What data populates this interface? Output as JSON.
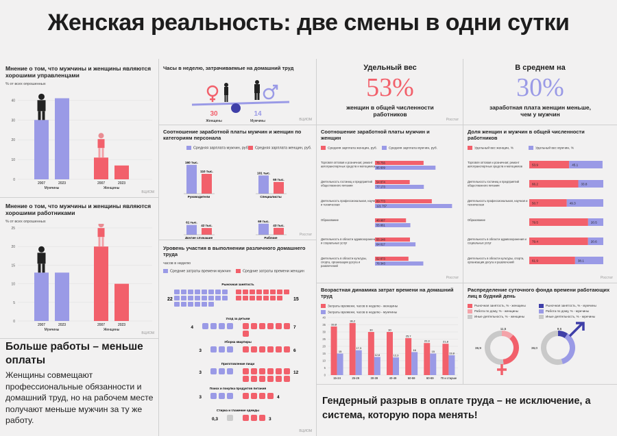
{
  "title": "Женская реальность: две смены в одни сутки",
  "colors": {
    "blue": "#9a9ae6",
    "red": "#f2606b",
    "pink": "#f4a3a9",
    "dark": "#1d1d1d",
    "navy": "#3f3fa8",
    "grey": "#c9c9c9"
  },
  "source_label": "ВЦИОМ",
  "source_label2": "Росстат",
  "panel_managers": {
    "title": "Мнение о том, что мужчины и женщины являются хорошими управленцами",
    "sub": "% от всех опрошенных",
    "men_label": "Мужчины",
    "women_label": "Женщины"
  },
  "panel_workers": {
    "title": "Мнение о том, что мужчины и женщины являются хорошими работниками",
    "sub": "% от всех опрошенных",
    "men_label": "Мужчины",
    "women_label": "Женщины"
  },
  "panel_hours": {
    "title": "Часы в неделю, затрачиваемые на домашний труд",
    "women_value": "30",
    "men_value": "14",
    "women_label": "Женщины",
    "men_label": "Мужчины"
  },
  "kpi_share": {
    "header": "Удельный вес",
    "value": "53%",
    "caption": "женщин в общей численности работников"
  },
  "kpi_avg": {
    "header": "В среднем на",
    "value": "30%",
    "caption": "заработная плата женщин меньше, чем у мужчин"
  },
  "panel_salary_cat": {
    "title": "Соотношение заработной платы мужчин и женщин по категориям персонала",
    "legend_men": "Средняя зарплата мужчин, руб.",
    "legend_women": "Средняя зарплата женщин, руб."
  },
  "panel_salary_ind": {
    "title": "Соотношение заработной платы мужчин и женщин",
    "legend_women": "Средняя зарплата женщин, руб.",
    "legend_men": "Средняя зарплата мужчин, руб."
  },
  "panel_share_ind": {
    "title": "Доля женщин и мужчин в общей численности работников",
    "legend_women": "Удельный вес женщин, %",
    "legend_men": "Удельный вес мужчин, %"
  },
  "panel_participation": {
    "title": "Уровень участия в выполнении различного домашнего труда",
    "sub": "часов в неделю",
    "legend_men": "Средние затраты времени мужчин",
    "legend_women": "Средние затраты времени женщин",
    "rows": [
      {
        "label": "Рыночная занятость",
        "men": "22",
        "women": "15"
      },
      {
        "label": "Уход за детьми",
        "men": "4",
        "women": "7"
      },
      {
        "label": "Уборка квартиры",
        "men": "3",
        "women": "6"
      },
      {
        "label": "Приготовление пищи",
        "men": "3",
        "women": "12"
      },
      {
        "label": "Поиск и покупка продуктов питания",
        "men": "3",
        "women": "4"
      },
      {
        "label": "Стирка и глажение одежды",
        "men": "0,3",
        "women": "3"
      }
    ]
  },
  "panel_dynamics": {
    "title": "Возрастная динамика затрат времени на домашний труд",
    "legend_women": "Затраты времени, часов в неделю - женщины",
    "legend_men": "Затраты времени, часов в неделю - мужчины"
  },
  "panel_distribution": {
    "title": "Распределение суточного фонда времени работающих лиц в будний день",
    "legend": [
      "Рыночная занятость, % - женщины",
      "Работа по дому, % - женщины",
      "Иные деятельность, % - женщины",
      "Рыночная занятость, % - мужчины",
      "Работа по дому, % - мужчины",
      "Иные деятельность, % - мужчины"
    ]
  },
  "message_left": {
    "headline": "Больше работы – меньше оплаты",
    "body": "Женщины совмещают профессиональные обязанности и домашний труд, но на рабочем месте получают меньше мужчин за ту же работу."
  },
  "message_bottom": "Гендерный разрыв в оплате труда – не исключение, а система, которую пора менять!",
  "chart_data": [
    {
      "type": "bar",
      "id": "managers",
      "categories": [
        "2007",
        "2023",
        "2007",
        "2023"
      ],
      "groups": [
        "Мужчины",
        "Женщины"
      ],
      "values": [
        30,
        41,
        11,
        7
      ],
      "ylim": [
        0,
        45
      ],
      "yticks": [
        0,
        10,
        20,
        30,
        40
      ]
    },
    {
      "type": "bar",
      "id": "workers",
      "categories": [
        "2007",
        "2023",
        "2007",
        "2023"
      ],
      "groups": [
        "Мужчины",
        "Женщины"
      ],
      "values": [
        13,
        13,
        20,
        10
      ],
      "ylim": [
        0,
        25
      ],
      "yticks": [
        0,
        5,
        10,
        15,
        20,
        25
      ]
    },
    {
      "type": "bar",
      "id": "salary_categories",
      "categories": [
        "Руководители",
        "Специалисты",
        "Другие служащие",
        "Рабочие"
      ],
      "series": [
        {
          "name": "Средняя зарплата мужчин, руб.",
          "values": [
            160,
            101,
            61,
            69
          ],
          "labels": [
            "160 тыс.",
            "101 тыс.",
            "61 тыс.",
            "69 тыс."
          ]
        },
        {
          "name": "Средняя зарплата женщин, руб.",
          "values": [
            110,
            65,
            42,
            43
          ],
          "labels": [
            "110 тыс.",
            "65 тыс.",
            "42 тыс.",
            "43 тыс."
          ]
        }
      ]
    },
    {
      "type": "bar",
      "id": "salary_industries",
      "orientation": "horizontal",
      "categories": [
        "Торговля оптовая и розничная; ремонт автотранспортных средств и мотоциклов",
        "Деятельность гостиниц и предприятий общественного питания",
        "Деятельность профессиональная, научная и техническая",
        "Образование",
        "Деятельность в области здравоохранения и социальных услуг",
        "Деятельность в области культуры, спорта, организации досуга и развлечений"
      ],
      "series": [
        {
          "name": "Средняя зарплата женщин, руб.",
          "values": [
            76756,
            54874,
            89773,
            48987,
            55248,
            52873
          ],
          "labels": [
            "76 756",
            "54 874",
            "89 773",
            "48 987",
            "55 248",
            "52 873"
          ]
        },
        {
          "name": "Средняя зарплата мужчин, руб.",
          "values": [
            95609,
            77173,
            121757,
            55861,
            64017,
            76343
          ],
          "labels": [
            "95 609",
            "77 173",
            "121 757",
            "55 861",
            "64 017",
            "76 343"
          ]
        }
      ]
    },
    {
      "type": "bar",
      "id": "share_industries",
      "orientation": "horizontal",
      "stacked": true,
      "categories": [
        "Торговля оптовая и розничная; ремонт автотранспортных средств и мотоциклов",
        "Деятельность гостиниц и предприятий общественного питания",
        "Деятельность профессиональная, научная и техническая",
        "Образование",
        "Деятельность в области здравоохранения и социальных услуг",
        "Деятельность в области культуры, спорта, организации досуга и развлечений"
      ],
      "series": [
        {
          "name": "Удельный вес женщин, %",
          "values": [
            53.9,
            66.2,
            50.7,
            79.5,
            79.4,
            61.9
          ],
          "labels": [
            "53.9",
            "66.2",
            "50.7",
            "79.5",
            "79.4",
            "61.9"
          ]
        },
        {
          "name": "Удельный вес мужчин, %",
          "values": [
            45.1,
            33.8,
            49.3,
            20.5,
            20.6,
            38.1
          ],
          "labels": [
            "45.1",
            "33.8",
            "49.3",
            "20.5",
            "20.6",
            "38.1"
          ]
        }
      ]
    },
    {
      "type": "bar",
      "id": "age_dynamics",
      "categories": [
        "15-24",
        "25-29",
        "30-39",
        "40-49",
        "50-59",
        "60-69",
        "70 и старше"
      ],
      "series": [
        {
          "name": "Затраты времени, часов в неделю - женщины",
          "values": [
            33.8,
            36.2,
            30,
            30,
            25.7,
            22.3,
            21.8
          ],
          "labels": [
            "33,8",
            "36,2",
            "30",
            "30",
            "25,7",
            "22,3",
            "21,8"
          ]
        },
        {
          "name": "Затраты времени, часов в неделю - мужчины",
          "values": [
            15,
            17.3,
            12.6,
            12.3,
            16,
            15,
            13.8
          ],
          "labels": [
            "15",
            "17,3",
            "12,6",
            "12,3",
            "16",
            "15",
            "13,8"
          ]
        }
      ],
      "ylim": [
        0,
        40
      ],
      "yticks": [
        0,
        5,
        10,
        15,
        20,
        25,
        30,
        35,
        40
      ]
    },
    {
      "type": "pie",
      "id": "women_day",
      "labels_shown": [
        "11,5",
        "36,9"
      ],
      "values": [
        11.5,
        36.9,
        51.6
      ]
    },
    {
      "type": "pie",
      "id": "men_day",
      "labels_shown": [
        "9,6",
        "36,0"
      ],
      "values": [
        9.6,
        36.0,
        54.4
      ]
    }
  ]
}
